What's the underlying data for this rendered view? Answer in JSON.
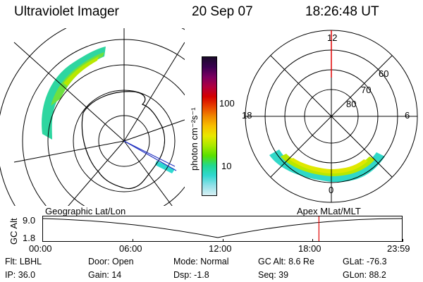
{
  "header": {
    "instrument": "Ultraviolet Imager",
    "date": "20 Sep 07",
    "time": "18:26:48 UT"
  },
  "colorbar": {
    "unit_label": "photon cm⁻²s⁻¹",
    "ticks": [
      "100",
      "10"
    ],
    "colors": [
      "#1a0a2a",
      "#3a0050",
      "#7a0060",
      "#b00040",
      "#d40000",
      "#e84000",
      "#f08800",
      "#f8c000",
      "#e8e800",
      "#a8e800",
      "#58e000",
      "#20d890",
      "#30d8d0",
      "#90e0e8",
      "#d8f0f4"
    ]
  },
  "left_map": {
    "label": "Geographic Lat/Lon"
  },
  "right_map": {
    "label": "Apex MLat/MLT",
    "mlt_labels": {
      "top": "12",
      "left": "18",
      "right": "6",
      "bottom": "0"
    },
    "lat_labels": [
      "60",
      "70",
      "80"
    ]
  },
  "timeline": {
    "ylabel": "GC Alt",
    "yticks": [
      "9.0",
      "1.8"
    ],
    "xticks": [
      "00:00",
      "06:00",
      "12:00",
      "18:00",
      "23:59"
    ],
    "current_fraction": 0.768,
    "marker_color": "#e00000"
  },
  "info": {
    "filter": "Flt: LBHL",
    "ip": "IP: 36.0",
    "door": "Door: Open",
    "gain": "Gain: 14",
    "mode": "Mode: Normal",
    "dsp": "Dsp:    -1.8",
    "gc_alt": "GC Alt: 8.6 Re",
    "seq": "Seq: 39",
    "glat": "GLat: -76.3",
    "glon": "GLon: 88.2"
  }
}
